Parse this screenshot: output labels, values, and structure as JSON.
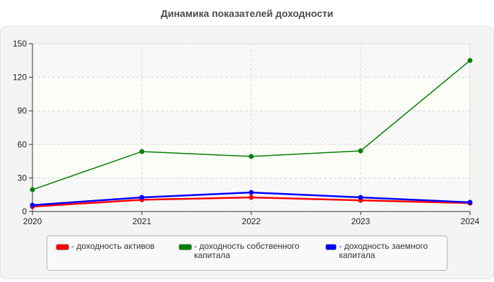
{
  "title": "Динамика показателей доходности",
  "colors": {
    "series_red": "#ff0000",
    "series_green": "#008000",
    "series_blue": "#0000ff"
  },
  "legend": [
    {
      "label": "- доходность активов",
      "color": "#ff0000"
    },
    {
      "label": "- доходность собственного капитала",
      "color": "#008000"
    },
    {
      "label": "- доходность заемного капитала",
      "color": "#0000ff"
    }
  ],
  "chart_data": {
    "type": "line",
    "title": "Динамика показателей доходности",
    "xlabel": "",
    "ylabel": "",
    "x": [
      "2020",
      "2021",
      "2022",
      "2023",
      "2024"
    ],
    "ylim": [
      0,
      150
    ],
    "yticks": [
      0,
      30,
      60,
      90,
      120,
      150
    ],
    "grid": true,
    "legend_position": "bottom",
    "series": [
      {
        "name": "доходность активов",
        "color": "#ff0000",
        "values": [
          4.4,
          10.5,
          12.6,
          10.0,
          7.5
        ]
      },
      {
        "name": "доходность собственного капитала",
        "color": "#008000",
        "values": [
          19.5,
          53.6,
          49.2,
          54.2,
          135.0
        ]
      },
      {
        "name": "доходность заемного капитала",
        "color": "#0000ff",
        "values": [
          5.7,
          12.6,
          17.0,
          12.6,
          8.2
        ]
      }
    ]
  }
}
